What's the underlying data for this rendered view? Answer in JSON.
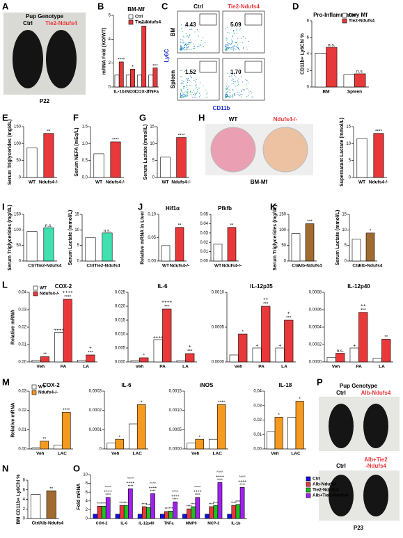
{
  "panel_letters": [
    "A",
    "B",
    "C",
    "D",
    "E",
    "F",
    "G",
    "H",
    "I",
    "J",
    "K",
    "L",
    "M",
    "N",
    "O",
    "P"
  ],
  "images": {
    "A": {
      "header": "Pup Genotype",
      "left": "Ctrl",
      "right": "Tie2-Ndufs4",
      "caption": "P22"
    },
    "C": {
      "left": "Ctrl",
      "right": "Tie2-Ndufs4",
      "rows": [
        "BM",
        "Spleen"
      ],
      "y_label": "Ly6C",
      "x_label": "CD11b",
      "percents": [
        "4.43",
        "5.09",
        "1.52",
        "1.70"
      ]
    },
    "H": {
      "left": "WT",
      "right": "Ndufs4-/-",
      "caption": "BM-Mf"
    },
    "P": {
      "header": "Pup Genotype",
      "top_left": "Ctrl",
      "top_right": "Alb-Ndufs4",
      "bottom_left": "Ctrl",
      "bottom_right": [
        "Alb+Tie2",
        "-Ndufs4"
      ],
      "caption": "P23"
    }
  },
  "chart_data": [
    {
      "type": "bar",
      "title": "BM-Mf",
      "ylabel": "mRNA Fold (KO/WT)",
      "categories": [
        "IL-1b",
        "iNOS",
        "COX-2",
        "TNFa"
      ],
      "ylim": [
        0,
        6
      ],
      "yticks": [
        0,
        2,
        4,
        6
      ],
      "legend": true,
      "series": [
        {
          "name": "Ctrl",
          "color": "#ffffff",
          "values": [
            1,
            1,
            1,
            1
          ]
        },
        {
          "name": "Tie2-Ndufs4",
          "color": "#e8383a",
          "values": [
            2.1,
            1.5,
            5.1,
            1.6
          ],
          "annotations": [
            "****",
            "*",
            "****",
            "***"
          ]
        }
      ]
    },
    {
      "type": "bar",
      "title": "Pro-Inflammatory Mf",
      "ylabel": "CD11b+ Ly6Chi %",
      "categories": [
        "BM",
        "Spleen"
      ],
      "ylim": [
        0,
        8
      ],
      "yticks": [
        0,
        2,
        4,
        6,
        8
      ],
      "legend": true,
      "series": [
        {
          "name": "Ctrl",
          "color": "#ffffff",
          "values": [
            4.1,
            1.5
          ]
        },
        {
          "name": "Tie2-Ndufs4",
          "color": "#e8383a",
          "values": [
            4.8,
            1.6
          ],
          "annotations": [
            "n.s.",
            "n.s."
          ]
        }
      ]
    },
    {
      "type": "bar",
      "ylabel": "Serum Triglycerides (mg/dL)",
      "categories": [
        "WT",
        "Ndufs4-/-"
      ],
      "values": [
        87,
        130
      ],
      "colors": [
        "#ffffff",
        "#e8383a"
      ],
      "annotations": [
        null,
        "**"
      ],
      "ylim": [
        0,
        150
      ],
      "yticks": [
        0,
        50,
        100,
        150
      ]
    },
    {
      "type": "bar",
      "ylabel": "Serum NEFA (mEq/L)",
      "categories": [
        "WT",
        "Ndufs4-/-"
      ],
      "values": [
        0.7,
        1.05
      ],
      "colors": [
        "#ffffff",
        "#e8383a"
      ],
      "annotations": [
        null,
        "****"
      ],
      "ylim": [
        0,
        1.5
      ],
      "yticks": [
        {
          "value": 0,
          "label": "0.0"
        },
        0.5,
        {
          "value": 1,
          "label": "1.0"
        },
        1.5
      ]
    },
    {
      "type": "bar",
      "ylabel": "Serum Lactate (mmol/L)",
      "categories": [
        "WT",
        "Ndufs4-/-"
      ],
      "values": [
        6,
        11.8
      ],
      "colors": [
        "#ffffff",
        "#e8383a"
      ],
      "annotations": [
        null,
        "****"
      ],
      "ylim": [
        0,
        15
      ],
      "yticks": [
        0,
        5,
        10,
        15
      ]
    },
    {
      "type": "bar",
      "ylabel": "Supernatant Lactate (mmol/L)",
      "categories": [
        "WT",
        "Ndufs4-/-"
      ],
      "values": [
        11.5,
        13
      ],
      "colors": [
        "#ffffff",
        "#e8383a"
      ],
      "annotations": [
        null,
        "****"
      ],
      "ylim": [
        0,
        15
      ],
      "yticks": [
        0,
        5,
        10,
        15
      ]
    },
    {
      "type": "bar",
      "ylabel": "Serum Triglycerides (mg/dL)",
      "categories": [
        "Ctrl",
        "Tie2-Ndufs4"
      ],
      "values": [
        95,
        107
      ],
      "colors": [
        "#ffffff",
        "#40e0b0"
      ],
      "annotations": [
        null,
        "n.s."
      ],
      "ylim": [
        0,
        150
      ],
      "yticks": [
        0,
        50,
        100,
        150
      ]
    },
    {
      "type": "bar",
      "ylabel": "Serum Lactate (mmol/L)",
      "categories": [
        "Ctrl",
        "Tie2-Ndufs4"
      ],
      "values": [
        7.5,
        9
      ],
      "colors": [
        "#ffffff",
        "#40e0b0"
      ],
      "annotations": [
        null,
        "n.s."
      ],
      "ylim": [
        0,
        15
      ],
      "yticks": [
        0,
        5,
        10,
        15
      ]
    },
    {
      "type": "bar",
      "title": "Hif1α",
      "ylabel": "Relative mRNA in Liver",
      "categories": [
        "WT",
        "Ndufs4-/-"
      ],
      "values": [
        0.033,
        0.072
      ],
      "colors": [
        "#ffffff",
        "#e8383a"
      ],
      "annotations": [
        null,
        "**"
      ],
      "ylim": [
        0,
        0.1
      ],
      "yticks": [
        {
          "value": 0,
          "label": "0.00"
        },
        0.05,
        {
          "value": 0.1,
          "label": "0.10"
        }
      ]
    },
    {
      "type": "bar",
      "title": "Pfkfb",
      "categories": [
        "WT",
        "Ndufs4-/-"
      ],
      "values": [
        0.018,
        0.036
      ],
      "colors": [
        "#ffffff",
        "#e8383a"
      ],
      "annotations": [
        null,
        "**"
      ],
      "ylim": [
        0,
        0.05
      ],
      "yticks": [
        {
          "value": 0,
          "label": "0.00"
        },
        0.01,
        0.02,
        0.03,
        0.04,
        0.05
      ]
    },
    {
      "type": "bar",
      "ylabel": "Serum Triglycerides (mg/dL)",
      "categories": [
        "Ctrl",
        "Alb-Ndufs4"
      ],
      "values": [
        88,
        120
      ],
      "colors": [
        "#ffffff",
        "#a06a30"
      ],
      "annotations": [
        null,
        "***"
      ],
      "ylim": [
        0,
        150
      ],
      "yticks": [
        0,
        50,
        100,
        150
      ]
    },
    {
      "type": "bar",
      "ylabel": "Serum Lactate (mmol/L)",
      "categories": [
        "Ctrl",
        "Alb-Ndufs4"
      ],
      "values": [
        7,
        9
      ],
      "colors": [
        "#ffffff",
        "#a06a30"
      ],
      "annotations": [
        null,
        "*"
      ],
      "ylim": [
        0,
        15
      ],
      "yticks": [
        0,
        5,
        10,
        15
      ]
    },
    {
      "type": "bar",
      "title": "COX-2",
      "ylabel": "Relative mRNA",
      "categories": [
        "Veh",
        "PA",
        "LA"
      ],
      "ylim": [
        0,
        0.04
      ],
      "yticks": [
        {
          "value": 0,
          "label": "0.00"
        },
        0.01,
        0.02,
        0.03,
        0.04
      ],
      "legend": true,
      "series": [
        {
          "name": "WT",
          "color": "#ffffff",
          "values": [
            0.001,
            0.017,
            0.001
          ],
          "annotations": [
            null,
            "++++",
            null
          ]
        },
        {
          "name": "Ndufs4-/-",
          "color": "#e8383a",
          "values": [
            0.003,
            0.036,
            0.004
          ],
          "annotations": [
            "**",
            [
              "++++",
              "****"
            ],
            [
              "+",
              "***"
            ]
          ]
        }
      ]
    },
    {
      "type": "bar",
      "title": "IL-6",
      "categories": [
        "Veh",
        "PA",
        "LA"
      ],
      "ylim": [
        0,
        0.025
      ],
      "yticks": [
        {
          "value": 0,
          "label": "0.000"
        },
        0.005,
        {
          "value": 0.01,
          "label": "0.010"
        },
        0.015,
        {
          "value": 0.02,
          "label": "0.020"
        },
        0.025
      ],
      "series": [
        {
          "name": "WT",
          "color": "#ffffff",
          "values": [
            0.0005,
            0.008,
            0.0005
          ],
          "annotations": [
            null,
            "++++",
            null
          ]
        },
        {
          "name": "Ndufs4-/-",
          "color": "#e8383a",
          "values": [
            0.0015,
            0.019,
            0.003
          ],
          "annotations": [
            "*",
            [
              "++++",
              "***"
            ],
            [
              "+",
              "***"
            ]
          ]
        }
      ]
    },
    {
      "type": "bar",
      "title": "IL-12p35",
      "categories": [
        "Veh",
        "PA",
        "LA"
      ],
      "ylim": [
        0,
        0.001
      ],
      "yticks": [
        {
          "value": 0,
          "label": "0.0000"
        },
        0.0005,
        {
          "value": 0.001,
          "label": "0.0010"
        }
      ],
      "series": [
        {
          "name": "WT",
          "color": "#ffffff",
          "values": [
            0.0001,
            0.0002,
            0.0002
          ],
          "annotations": [
            null,
            "+",
            "+"
          ]
        },
        {
          "name": "Ndufs4-/-",
          "color": "#e8383a",
          "values": [
            0.0004,
            0.0008,
            0.0006
          ],
          "annotations": [
            "*",
            [
              "++",
              "***"
            ],
            [
              "+",
              "***"
            ]
          ]
        }
      ]
    },
    {
      "type": "bar",
      "title": "IL-12p40",
      "categories": [
        "Veh",
        "PA",
        "LA"
      ],
      "ylim": [
        0,
        0.0008
      ],
      "yticks": [
        {
          "value": 0,
          "label": "0.0000"
        },
        0.0002,
        0.0004,
        0.0006,
        0.0008
      ],
      "series": [
        {
          "name": "WT",
          "color": "#ffffff",
          "values": [
            5e-05,
            0.00016,
            4e-05
          ],
          "annotations": [
            null,
            "+",
            null
          ]
        },
        {
          "name": "Ndufs4-/-",
          "color": "#e8383a",
          "values": [
            0.0001,
            0.00057,
            0.00026
          ],
          "annotations": [
            "n.s.",
            [
              "++",
              "***"
            ],
            "**"
          ]
        }
      ]
    },
    {
      "type": "bar",
      "title": "COX-2",
      "ylabel": "Relative mRNA",
      "categories": [
        "Veh",
        "LAC"
      ],
      "ylim": [
        0,
        0.03
      ],
      "yticks": [
        {
          "value": 0,
          "label": "0.00"
        },
        0.01,
        0.02,
        0.03
      ],
      "legend": true,
      "series": [
        {
          "name": "WT",
          "color": "#ffffff",
          "values": [
            0.0005,
            0.002
          ]
        },
        {
          "name": "Ndufs4-/-",
          "color": "#f59a1e",
          "values": [
            0.004,
            0.019
          ],
          "annotations": [
            "**",
            "****"
          ]
        }
      ]
    },
    {
      "type": "bar",
      "title": "IL-6",
      "categories": [
        "Veh",
        "LAC"
      ],
      "ylim": [
        0,
        0.0003
      ],
      "yticks": [
        0,
        0.0001,
        0.0002,
        0.0003
      ],
      "series": [
        {
          "name": "WT",
          "color": "#ffffff",
          "values": [
            3e-05,
            0.00013
          ]
        },
        {
          "name": "Ndufs4-/-",
          "color": "#f59a1e",
          "values": [
            5e-05,
            0.00023
          ],
          "annotations": [
            "*",
            "*"
          ]
        }
      ]
    },
    {
      "type": "bar",
      "title": "iNOS",
      "categories": [
        "Veh",
        "LAC"
      ],
      "ylim": [
        0,
        0.0015
      ],
      "yticks": [
        {
          "value": 0,
          "label": "0.0000"
        },
        0.0005,
        {
          "value": 0.001,
          "label": "0.0010"
        },
        0.0015
      ],
      "series": [
        {
          "name": "WT",
          "color": "#ffffff",
          "values": [
            0.00015,
            0.00025
          ]
        },
        {
          "name": "Ndufs4-/-",
          "color": "#f59a1e",
          "values": [
            0.00025,
            0.00115
          ],
          "annotations": [
            "*",
            "****"
          ]
        }
      ]
    },
    {
      "type": "bar",
      "title": "IL-18",
      "categories": [
        "Veh",
        "LAC"
      ],
      "ylim": [
        0,
        0.04
      ],
      "yticks": [
        {
          "value": 0,
          "label": "0.00"
        },
        0.01,
        0.02,
        0.03,
        0.04
      ],
      "series": [
        {
          "name": "WT",
          "color": "#ffffff",
          "values": [
            0.012,
            0.022
          ]
        },
        {
          "name": "Ndufs4-/-",
          "color": "#f59a1e",
          "values": [
            0.022,
            0.033
          ],
          "annotations": [
            "*",
            "*"
          ]
        }
      ]
    },
    {
      "type": "bar",
      "ylabel": "BM CD11b+ Ly6Chi %",
      "categories": [
        "Ctrl",
        "Alb-Ndufs4"
      ],
      "values": [
        5.0,
        5.8
      ],
      "colors": [
        "#ffffff",
        "#a06a30"
      ],
      "annotations": [
        null,
        "**"
      ],
      "ylim": [
        0,
        8
      ],
      "yticks": [
        0,
        2,
        4,
        6,
        8
      ]
    },
    {
      "type": "bar",
      "ylabel": "Fold mRNA",
      "categories": [
        "COX-2",
        "IL-6",
        "IL-12p40",
        "TNFa",
        "MMP9",
        "MCP-3",
        "IL-1b"
      ],
      "ylim": [
        0,
        10
      ],
      "yticks": [
        0,
        2,
        4,
        6,
        8,
        10
      ],
      "legend": true,
      "series": [
        {
          "name": "Ctrl",
          "color": "#1010e0",
          "values": [
            1,
            1,
            1,
            1,
            1,
            1,
            1
          ]
        },
        {
          "name": "Alb-Ndufs4",
          "color": "#e8383a",
          "values": [
            2.8,
            3,
            2.7,
            1.6,
            2.2,
            2.7,
            3
          ],
          "annotations": [
            "****",
            "****",
            "****",
            "***",
            "****",
            "****",
            "****"
          ]
        },
        {
          "name": "Tie2-Ndufs4",
          "color": "#20c020",
          "values": [
            2.8,
            3,
            2.5,
            1.7,
            2.7,
            3,
            3.2
          ],
          "annotations": [
            "****",
            "****",
            "****",
            "***",
            "****",
            "****",
            "****"
          ]
        },
        {
          "name": "Alb+Tie2-Ndufs4",
          "color": "#a020f0",
          "values": [
            4.8,
            6.8,
            5.7,
            3.8,
            4.8,
            8.2,
            7.1
          ],
          "annotations": [
            [
              "^^^^",
              "++++",
              "****"
            ],
            [
              "^^^^",
              "++++",
              "****"
            ],
            [
              "^^^^",
              "++++",
              "****"
            ],
            [
              "^^^^",
              "++++",
              "****"
            ],
            [
              "^^^^",
              "++++",
              "****"
            ],
            [
              "^^^^",
              "++++",
              "****"
            ],
            [
              "^^^^",
              "++++",
              "****"
            ]
          ]
        }
      ]
    }
  ]
}
